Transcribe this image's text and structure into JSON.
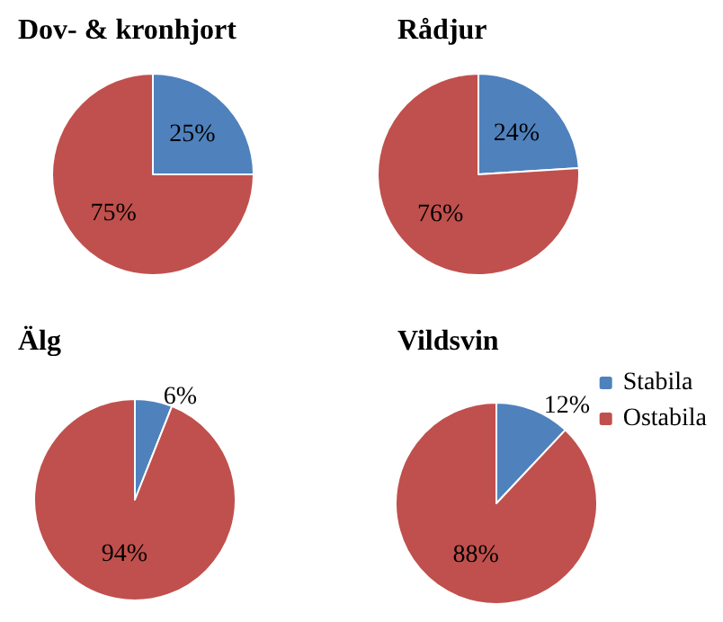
{
  "chart_data": [
    {
      "type": "pie",
      "title": "Dov- & kronhjort",
      "categories": [
        null,
        null
      ],
      "values": [
        25,
        75
      ],
      "colors": [
        "#4f81bd",
        "#c0504d"
      ],
      "value_labels": [
        "25%",
        "75%"
      ]
    },
    {
      "type": "pie",
      "title": "Rådjur",
      "categories": [
        null,
        null
      ],
      "values": [
        24,
        76
      ],
      "colors": [
        "#4f81bd",
        "#c0504d"
      ],
      "value_labels": [
        "24%",
        "76%"
      ]
    },
    {
      "type": "pie",
      "title": "Älg",
      "categories": [
        null,
        null
      ],
      "values": [
        6,
        94
      ],
      "colors": [
        "#4f81bd",
        "#c0504d"
      ],
      "value_labels": [
        "6%",
        "94%"
      ]
    },
    {
      "type": "pie",
      "title": "Vildsvin",
      "categories": [
        "Stabila",
        "Ostabila"
      ],
      "values": [
        12,
        88
      ],
      "colors": [
        "#4f81bd",
        "#c0504d"
      ],
      "value_labels": [
        "12%",
        "88%"
      ],
      "legend": "top right"
    }
  ]
}
